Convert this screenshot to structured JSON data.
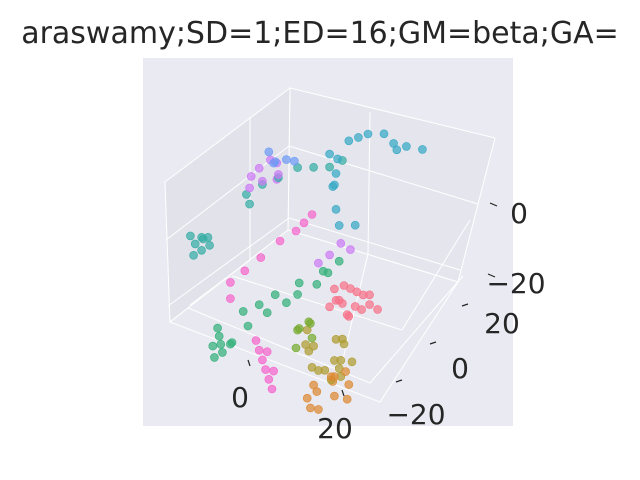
{
  "chart_data": {
    "type": "scatter",
    "projection": "3d",
    "title": "araswamy;SD=1;ED=16;GM=beta;GA=",
    "grid": true,
    "legend": "none",
    "background": "#eaeaf2",
    "x_ticks": [
      "0",
      "20"
    ],
    "y_ticks": [
      "20",
      "0",
      "−20"
    ],
    "z_ticks": [
      "0",
      "−20"
    ],
    "xlim": [
      -20,
      30
    ],
    "ylim": [
      -30,
      25
    ],
    "zlim": [
      -30,
      15
    ],
    "series": [
      {
        "color": "#f77189",
        "points": [
          [
            14,
            -6,
            1
          ],
          [
            16,
            -7,
            2
          ],
          [
            18,
            -6,
            1
          ],
          [
            17,
            -4,
            3
          ],
          [
            15,
            -3,
            2
          ],
          [
            19,
            -5,
            4
          ],
          [
            20,
            -7,
            2
          ],
          [
            13,
            -5,
            3
          ],
          [
            16,
            -8,
            4
          ],
          [
            21,
            -6,
            3
          ],
          [
            18,
            -8,
            0
          ],
          [
            15,
            -5,
            5
          ],
          [
            14,
            -8,
            1
          ],
          [
            19,
            -3,
            2
          ],
          [
            22,
            -5,
            1
          ],
          [
            17,
            -7,
            -1
          ]
        ]
      },
      {
        "color": "#dc8932",
        "points": [
          [
            20,
            -22,
            -6
          ],
          [
            22,
            -24,
            -5
          ],
          [
            23,
            -20,
            -4
          ],
          [
            24,
            -22,
            -3
          ],
          [
            21,
            -18,
            -7
          ],
          [
            25,
            -23,
            -6
          ],
          [
            22,
            -26,
            -8
          ],
          [
            26,
            -20,
            -5
          ],
          [
            23,
            -25,
            -9
          ],
          [
            24,
            -18,
            -4
          ],
          [
            27,
            -22,
            -7
          ],
          [
            20,
            -24,
            -8
          ]
        ]
      },
      {
        "color": "#ae9d31",
        "points": [
          [
            24,
            -20,
            -1
          ],
          [
            25,
            -21,
            3
          ],
          [
            25,
            -20,
            7
          ],
          [
            26,
            -22,
            11
          ],
          [
            25,
            -23,
            5
          ],
          [
            24,
            -21,
            9
          ],
          [
            26,
            -19,
            1
          ],
          [
            13,
            -14,
            -5
          ],
          [
            15,
            -16,
            -4
          ],
          [
            17,
            -18,
            -6
          ],
          [
            19,
            -19,
            -5
          ],
          [
            21,
            -20,
            -3
          ],
          [
            23,
            -21,
            -4
          ],
          [
            25,
            -21,
            -2
          ],
          [
            12,
            -12,
            -3
          ],
          [
            14,
            -13,
            -6
          ]
        ]
      },
      {
        "color": "#77ab31",
        "points": [
          [
            10,
            -12,
            -4
          ],
          [
            11,
            -10,
            -3
          ],
          [
            12,
            -11,
            -2
          ],
          [
            13,
            -12,
            -5
          ],
          [
            9,
            -10,
            -6
          ],
          [
            11,
            -14,
            -7
          ]
        ]
      },
      {
        "color": "#33b07a",
        "points": [
          [
            -6,
            -12,
            -16
          ],
          [
            -7,
            -11,
            -15
          ],
          [
            -5,
            -13,
            -17
          ],
          [
            -8,
            -10,
            -14
          ],
          [
            -4,
            -12,
            -15
          ],
          [
            -6,
            -14,
            -18
          ],
          [
            -7,
            -13,
            -16
          ],
          [
            -5,
            -10,
            -17
          ],
          [
            -3,
            -8,
            -13
          ],
          [
            -1,
            -5,
            -11
          ],
          [
            1,
            -2,
            -10
          ],
          [
            2,
            0,
            -9
          ],
          [
            4,
            3,
            -8
          ],
          [
            5,
            5,
            -6
          ],
          [
            -4,
            -8,
            -9
          ],
          [
            -2,
            -6,
            -8
          ],
          [
            0,
            -4,
            -6
          ],
          [
            3,
            -1,
            -4
          ],
          [
            6,
            2,
            -2
          ],
          [
            8,
            4,
            0
          ]
        ]
      },
      {
        "color": "#36ada4",
        "points": [
          [
            -18,
            -2,
            -1
          ],
          [
            -17,
            -1,
            0
          ],
          [
            -16,
            -3,
            -1
          ],
          [
            -19,
            -2,
            1
          ],
          [
            -17,
            -4,
            -2
          ],
          [
            -15,
            -2,
            0
          ],
          [
            -18,
            0,
            -1
          ],
          [
            -16,
            -1,
            1
          ],
          [
            -14,
            8,
            6
          ],
          [
            -12,
            10,
            8
          ],
          [
            -10,
            12,
            9
          ],
          [
            -8,
            15,
            10
          ],
          [
            -6,
            17,
            9
          ],
          [
            -4,
            19,
            8
          ],
          [
            -2,
            20,
            10
          ],
          [
            -12,
            6,
            6
          ]
        ]
      },
      {
        "color": "#38a9c5",
        "points": [
          [
            -2,
            22,
            14
          ],
          [
            0,
            22,
            16
          ],
          [
            2,
            22,
            18
          ],
          [
            4,
            24,
            17
          ],
          [
            6,
            24,
            15
          ],
          [
            8,
            22,
            16
          ],
          [
            10,
            22,
            18
          ],
          [
            12,
            24,
            16
          ],
          [
            -4,
            19,
            12
          ],
          [
            -3,
            20,
            10
          ],
          [
            -2,
            18,
            8
          ],
          [
            -1,
            16,
            7
          ],
          [
            0,
            14,
            9
          ],
          [
            2,
            12,
            5
          ],
          [
            4,
            10,
            3
          ],
          [
            6,
            12,
            2
          ]
        ]
      },
      {
        "color": "#6e9bf4",
        "points": [
          [
            -13,
            15,
            9
          ],
          [
            -11,
            16,
            10
          ],
          [
            -12,
            14,
            11
          ],
          [
            -10,
            17,
            9
          ],
          [
            -14,
            15,
            12
          ]
        ]
      },
      {
        "color": "#cc7af4",
        "points": [
          [
            -14,
            12,
            10
          ],
          [
            -13,
            14,
            11
          ],
          [
            -11,
            13,
            12
          ],
          [
            -12,
            10,
            9
          ],
          [
            -15,
            11,
            8
          ],
          [
            -10,
            12,
            10
          ],
          [
            -9,
            10,
            11
          ],
          [
            -14,
            9,
            7
          ],
          [
            6,
            4,
            1
          ],
          [
            7,
            6,
            3
          ],
          [
            9,
            6,
            2
          ],
          [
            5,
            2,
            0
          ]
        ]
      },
      {
        "color": "#f565cc",
        "points": [
          [
            -8,
            -6,
            -4
          ],
          [
            -7,
            -3,
            -3
          ],
          [
            -5,
            -1,
            0
          ],
          [
            -3,
            2,
            3
          ],
          [
            -1,
            4,
            5
          ],
          [
            0,
            5,
            7
          ],
          [
            1,
            6,
            9
          ],
          [
            -6,
            -9,
            -5
          ],
          [
            2,
            -13,
            -10
          ],
          [
            4,
            -15,
            -10
          ],
          [
            6,
            -17,
            -10
          ],
          [
            8,
            -19,
            -10
          ],
          [
            10,
            -21,
            -10
          ],
          [
            12,
            -23,
            -10
          ],
          [
            5,
            -14,
            -11
          ],
          [
            9,
            -18,
            -11
          ]
        ]
      }
    ]
  }
}
